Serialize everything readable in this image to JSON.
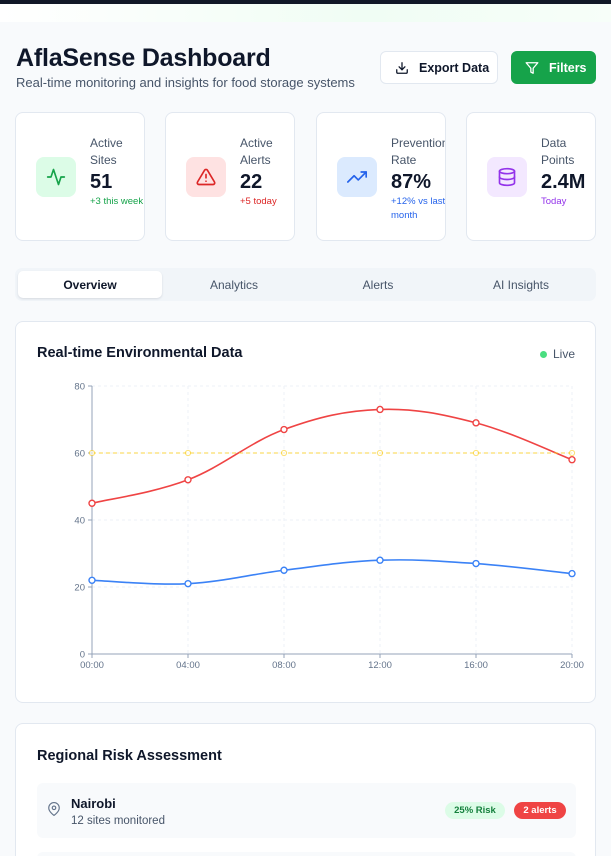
{
  "header": {
    "title": "AflaSense Dashboard",
    "subtitle": "Real-time monitoring and insights for food storage systems",
    "export_label": "Export Data",
    "filters_label": "Filters"
  },
  "stats": [
    {
      "label": "Active Sites",
      "value": "51",
      "change": "+3 this week",
      "icon": "activity-icon",
      "accent": "#16a34a",
      "bg": "#dcfce7"
    },
    {
      "label": "Active Alerts",
      "value": "22",
      "change": "+5 today",
      "icon": "alert-triangle-icon",
      "accent": "#dc2626",
      "bg": "#fee2e2"
    },
    {
      "label": "Prevention Rate",
      "value": "87%",
      "change": "+12% vs last month",
      "icon": "trending-up-icon",
      "accent": "#2563eb",
      "bg": "#dbeafe"
    },
    {
      "label": "Data Points",
      "value": "2.4M",
      "change": "Today",
      "icon": "database-icon",
      "accent": "#9333ea",
      "bg": "#f3e8ff"
    }
  ],
  "tabs": [
    {
      "label": "Overview",
      "active": true
    },
    {
      "label": "Analytics",
      "active": false
    },
    {
      "label": "Alerts",
      "active": false
    },
    {
      "label": "AI Insights",
      "active": false
    }
  ],
  "chart_card": {
    "title": "Real-time Environmental Data",
    "live_label": "Live"
  },
  "chart_data": {
    "type": "line",
    "categories": [
      "00:00",
      "04:00",
      "08:00",
      "12:00",
      "16:00",
      "20:00"
    ],
    "ylim": [
      0,
      80
    ],
    "yticks": [
      0,
      20,
      40,
      60,
      80
    ],
    "grid": true,
    "series": [
      {
        "values": [
          45,
          52,
          67,
          73,
          69,
          58
        ],
        "color": "#ef4444",
        "style": "solid"
      },
      {
        "values": [
          22,
          21,
          25,
          28,
          27,
          24
        ],
        "color": "#3b82f6",
        "style": "solid"
      },
      {
        "values": [
          60,
          60,
          60,
          60,
          60,
          60
        ],
        "color": "#facc15",
        "style": "dashed"
      }
    ]
  },
  "risk_card": {
    "title": "Regional Risk Assessment",
    "regions": [
      {
        "name": "Nairobi",
        "sites": "12 sites monitored",
        "risk": "25% Risk",
        "alerts": "2 alerts"
      }
    ]
  }
}
